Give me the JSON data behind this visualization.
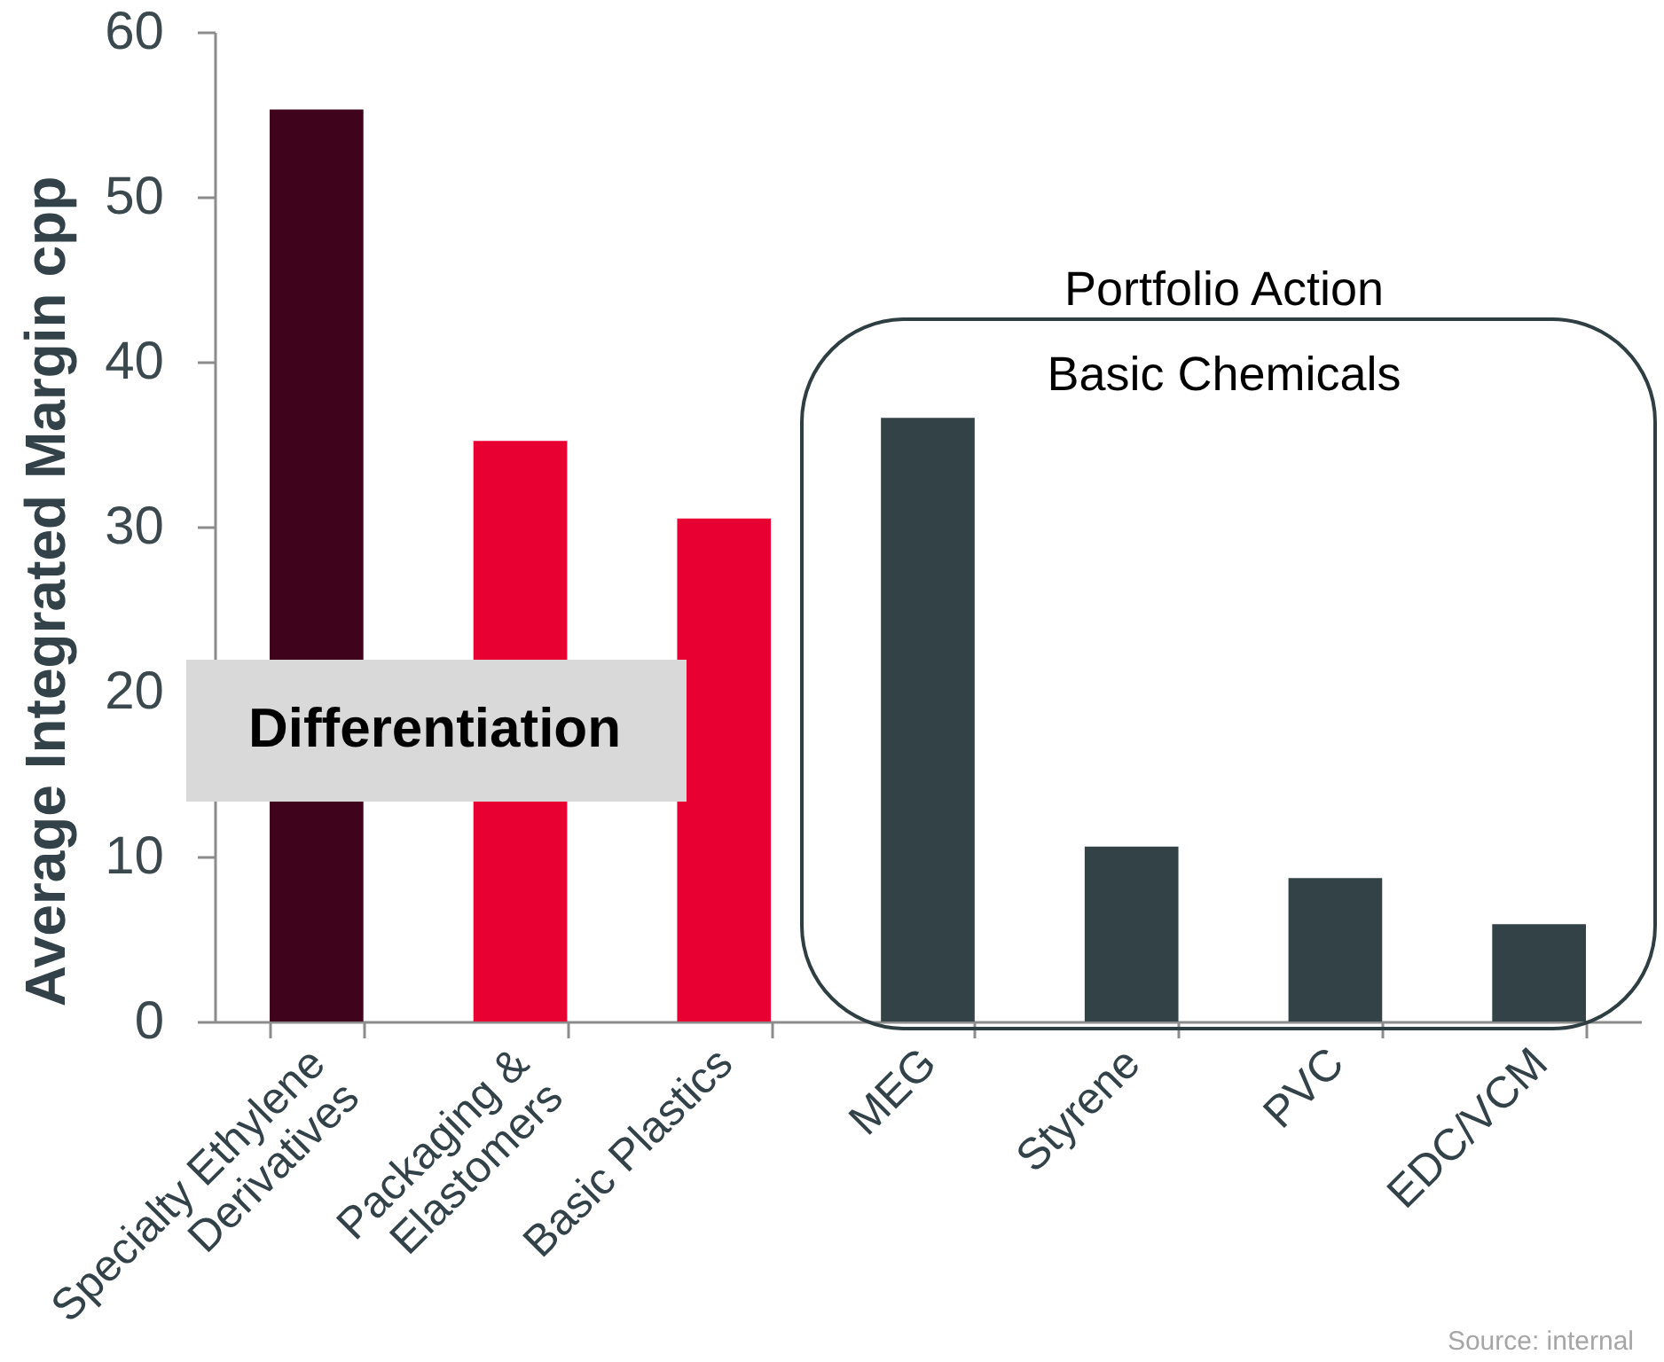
{
  "chart_data": {
    "type": "bar",
    "ylabel": "Average Integrated Margin cpp",
    "categories": [
      "Specialty Ethylene Derivatives",
      "Packaging & Elastomers",
      "Basic Plastics",
      "MEG",
      "Styrene",
      "PVC",
      "EDC/VCM"
    ],
    "values": [
      55.3,
      35.2,
      30.5,
      36.6,
      10.6,
      8.7,
      5.9
    ],
    "colors": [
      "#40031c",
      "#e80033",
      "#e80033",
      "#324246",
      "#324246",
      "#324246",
      "#324246"
    ],
    "ylim": [
      0,
      60
    ],
    "yticks": [
      0,
      10,
      20,
      30,
      40,
      50,
      60
    ],
    "annotations": [
      "Differentiation",
      "Portfolio Action",
      "Basic Chemicals",
      "Source: internal"
    ]
  }
}
